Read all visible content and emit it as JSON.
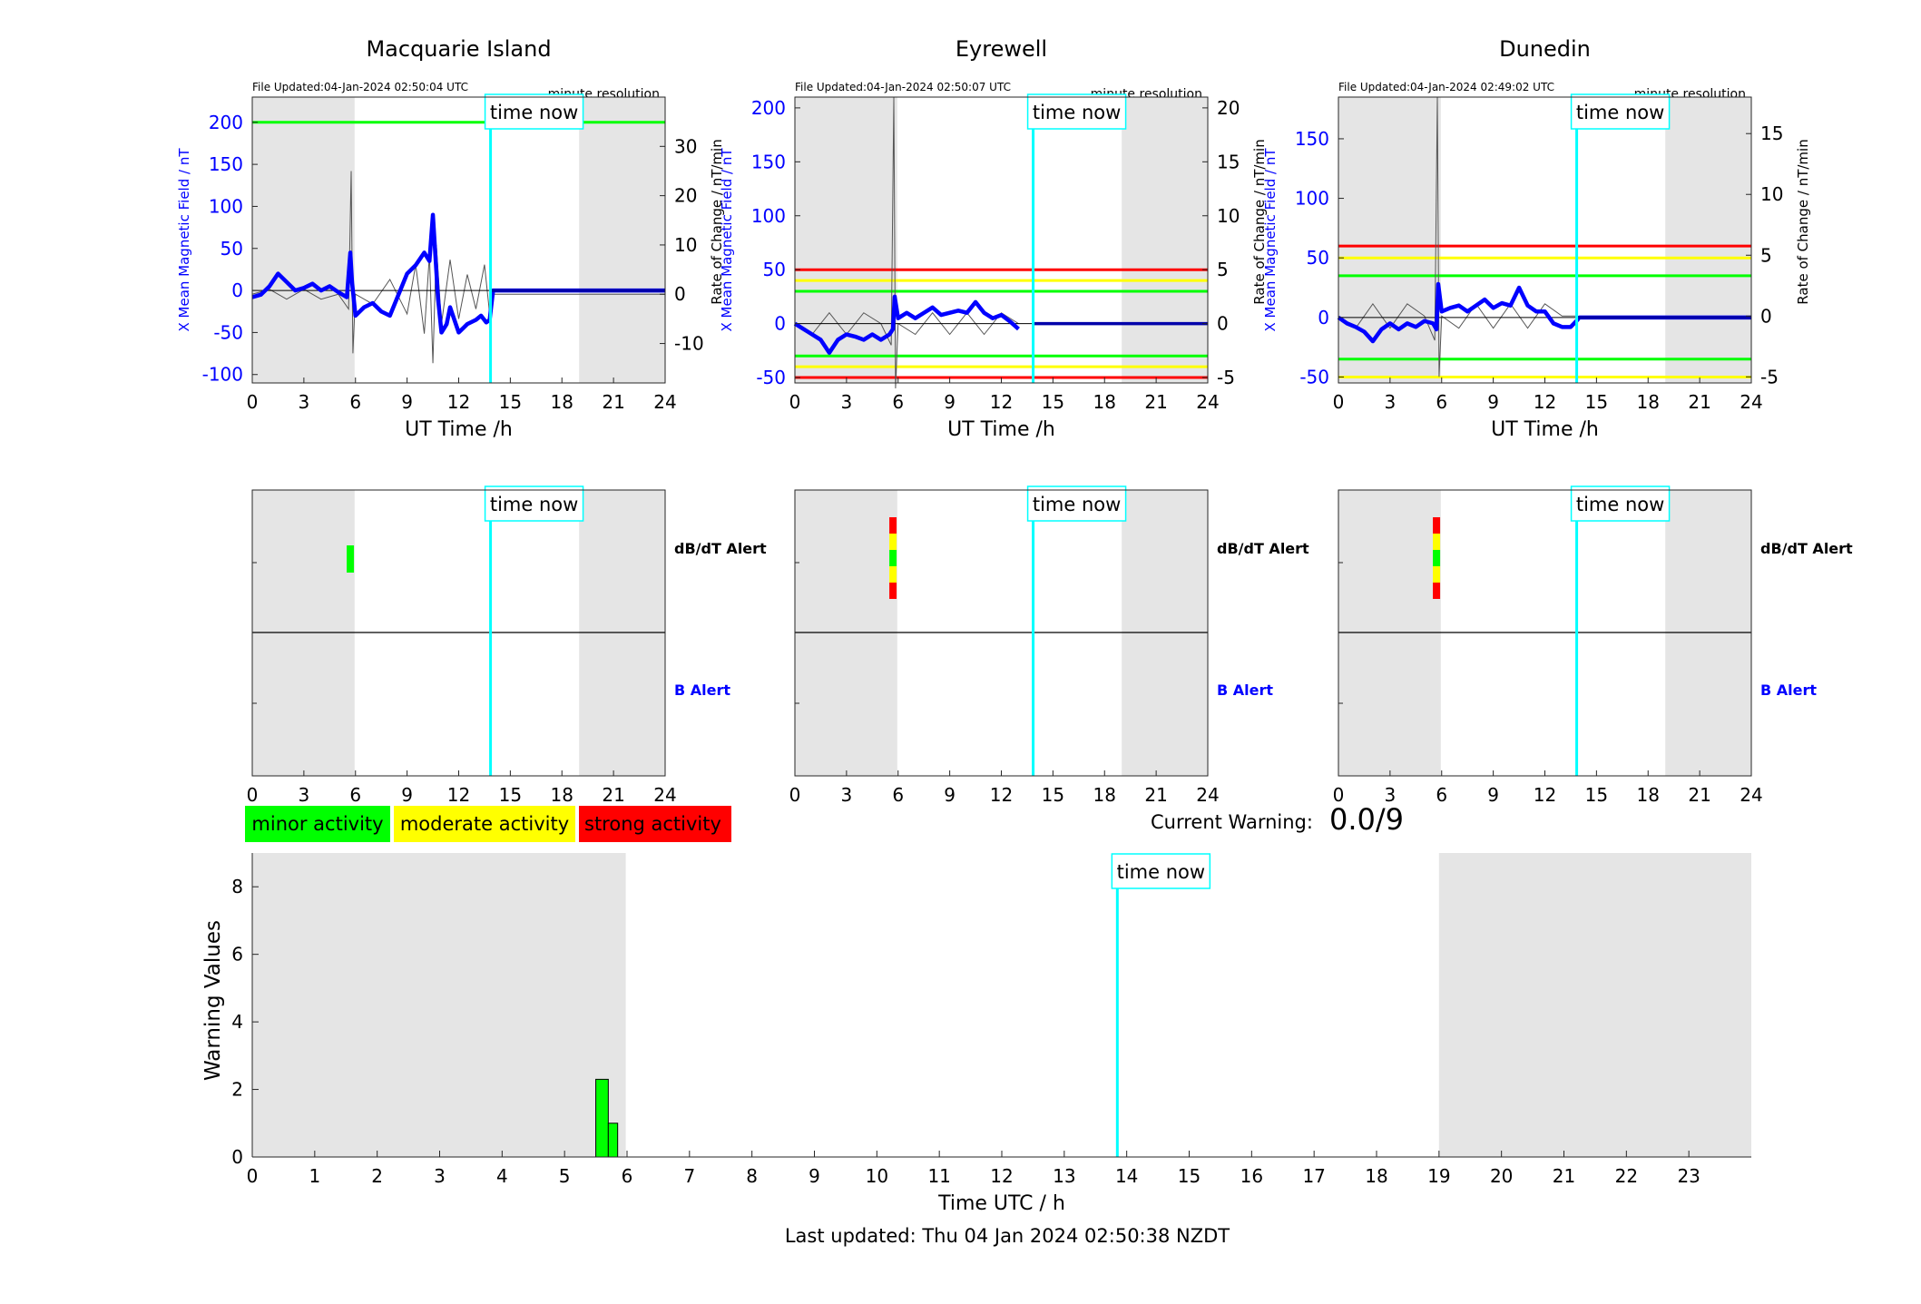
{
  "colors": {
    "blue": "#0000ff",
    "cyan": "#00ffff",
    "green": "#00ff00",
    "yellow": "#ffff00",
    "red": "#ff0000",
    "night": "#e5e5e5"
  },
  "labels": {
    "ut_xlabel": "UT Time /h",
    "left_ylabel": "X Mean Magnetic Field / nT",
    "right_ylabel": "Rate of Change / nT/min",
    "minute_res": "minute resolution",
    "time_now": "time now",
    "dbdt_alert": "dB/dT Alert",
    "b_alert": "B Alert"
  },
  "legend": {
    "minor": "minor activity",
    "moderate": "moderate activity",
    "strong": "strong activity"
  },
  "warning": {
    "label": "Current Warning:",
    "value": "0.0/9"
  },
  "footer": "Last updated: Thu 04 Jan 2024 02:50:38 NZDT",
  "chart_data": [
    {
      "type": "line",
      "title": "Macquarie Island",
      "file_updated": "File Updated:04-Jan-2024 02:50:04 UTC",
      "xlim": [
        0,
        24
      ],
      "xticks": [
        0,
        3,
        6,
        9,
        12,
        15,
        18,
        21,
        24
      ],
      "ylim": [
        -110,
        230
      ],
      "yticks": [
        -100,
        -50,
        0,
        50,
        100,
        150,
        200
      ],
      "y2lim": [
        -18,
        40
      ],
      "y2ticks": [
        -10,
        0,
        10,
        20,
        30
      ],
      "night": [
        [
          0,
          5.95
        ],
        [
          19,
          24
        ]
      ],
      "time_now": 13.85,
      "thresholds": [
        {
          "value": 200,
          "color": "green"
        }
      ],
      "series": [
        {
          "role": "x_mean",
          "x": [
            0,
            0.5,
            1,
            1.5,
            2,
            2.5,
            3,
            3.5,
            4,
            4.5,
            5,
            5.5,
            5.7,
            5.8,
            6,
            6.5,
            7,
            7.5,
            8,
            8.5,
            9,
            9.5,
            10,
            10.3,
            10.5,
            10.8,
            11,
            11.3,
            11.5,
            12,
            12.5,
            13,
            13.3,
            13.6,
            13.8,
            14,
            24
          ],
          "y": [
            -8,
            -5,
            5,
            20,
            10,
            0,
            3,
            8,
            0,
            5,
            -2,
            -8,
            45,
            10,
            -30,
            -20,
            -15,
            -25,
            -30,
            -5,
            20,
            30,
            45,
            35,
            90,
            -10,
            -50,
            -40,
            -20,
            -50,
            -40,
            -35,
            -30,
            -38,
            -35,
            0,
            0
          ]
        },
        {
          "role": "rate",
          "x": [
            0,
            1,
            2,
            3,
            4,
            5,
            5.6,
            5.75,
            5.85,
            6,
            7,
            8,
            9,
            9.5,
            10,
            10.3,
            10.5,
            10.7,
            11,
            11.5,
            12,
            12.5,
            13,
            13.5,
            13.8,
            14,
            24
          ],
          "y": [
            0,
            1,
            -1,
            1,
            -1,
            0,
            -3,
            25,
            -12,
            0,
            -2,
            3,
            -4,
            6,
            -8,
            8,
            -14,
            10,
            -6,
            7,
            -5,
            4,
            -3,
            6,
            -4,
            0,
            0
          ]
        }
      ],
      "alerts": {
        "dbdt": [
          {
            "x": 5.7,
            "levels": [
              "green"
            ]
          }
        ],
        "b": []
      }
    },
    {
      "type": "line",
      "title": "Eyrewell",
      "file_updated": "File Updated:04-Jan-2024 02:50:07 UTC",
      "xlim": [
        0,
        24
      ],
      "xticks": [
        0,
        3,
        6,
        9,
        12,
        15,
        18,
        21,
        24
      ],
      "ylim": [
        -55,
        210
      ],
      "yticks": [
        -50,
        0,
        50,
        100,
        150,
        200
      ],
      "y2lim": [
        -5.5,
        21
      ],
      "y2ticks": [
        -5,
        0,
        5,
        10,
        15,
        20
      ],
      "night": [
        [
          0,
          5.95
        ],
        [
          19,
          24
        ]
      ],
      "time_now": 13.85,
      "thresholds": [
        {
          "value": 50,
          "color": "red"
        },
        {
          "value": 40,
          "color": "yellow"
        },
        {
          "value": 30,
          "color": "green"
        },
        {
          "value": -30,
          "color": "green"
        },
        {
          "value": -40,
          "color": "yellow"
        },
        {
          "value": -50,
          "color": "red"
        }
      ],
      "series": [
        {
          "role": "x_mean",
          "x": [
            0,
            0.5,
            1,
            1.5,
            2,
            2.5,
            3,
            3.5,
            4,
            4.5,
            5,
            5.5,
            5.7,
            5.8,
            6,
            6.5,
            7,
            7.5,
            8,
            8.5,
            9,
            9.5,
            10,
            10.5,
            11,
            11.5,
            12,
            12.5,
            13
          ],
          "y": [
            0,
            -5,
            -10,
            -15,
            -27,
            -15,
            -10,
            -12,
            -15,
            -10,
            -15,
            -10,
            -5,
            25,
            5,
            10,
            5,
            10,
            15,
            8,
            10,
            12,
            10,
            20,
            10,
            5,
            8,
            2,
            -5
          ]
        },
        {
          "role": "rate",
          "x": [
            0,
            1,
            2,
            3,
            4,
            5,
            5.6,
            5.75,
            5.85,
            6,
            7,
            8,
            9,
            10,
            11,
            12,
            13
          ],
          "y": [
            0,
            -1,
            1,
            -1,
            1,
            0,
            -2,
            21,
            -6,
            0,
            -1,
            1,
            -1,
            1,
            -1,
            1,
            0
          ]
        }
      ],
      "alerts": {
        "dbdt": [
          {
            "x": 5.7,
            "levels": [
              "red",
              "yellow",
              "green",
              "yellow",
              "red"
            ]
          }
        ],
        "b": []
      }
    },
    {
      "type": "line",
      "title": "Dunedin",
      "file_updated": "File Updated:04-Jan-2024 02:49:02 UTC",
      "xlim": [
        0,
        24
      ],
      "xticks": [
        0,
        3,
        6,
        9,
        12,
        15,
        18,
        21,
        24
      ],
      "ylim": [
        -55,
        185
      ],
      "yticks": [
        -50,
        0,
        50,
        100,
        150
      ],
      "y2lim": [
        -5.5,
        18
      ],
      "y2ticks": [
        -5,
        0,
        5,
        10,
        15
      ],
      "night": [
        [
          0,
          5.95
        ],
        [
          19,
          24
        ]
      ],
      "time_now": 13.85,
      "thresholds": [
        {
          "value": 60,
          "color": "red"
        },
        {
          "value": 50,
          "color": "yellow"
        },
        {
          "value": 35,
          "color": "green"
        },
        {
          "value": -35,
          "color": "green"
        },
        {
          "value": -50,
          "color": "yellow"
        }
      ],
      "series": [
        {
          "role": "x_mean",
          "x": [
            0,
            0.5,
            1,
            1.5,
            2,
            2.5,
            3,
            3.5,
            4,
            4.5,
            5,
            5.5,
            5.7,
            5.8,
            6,
            6.5,
            7,
            7.5,
            8,
            8.5,
            9,
            9.5,
            10,
            10.5,
            11,
            11.5,
            12,
            12.5,
            13,
            13.5,
            13.9,
            14,
            24
          ],
          "y": [
            0,
            -5,
            -8,
            -12,
            -20,
            -10,
            -5,
            -10,
            -5,
            -8,
            -3,
            -5,
            -10,
            28,
            5,
            8,
            10,
            5,
            10,
            15,
            8,
            12,
            10,
            25,
            10,
            5,
            5,
            -5,
            -8,
            -8,
            -2,
            0,
            0
          ]
        },
        {
          "role": "rate",
          "x": [
            0,
            1,
            2,
            3,
            4,
            5,
            5.6,
            5.75,
            5.85,
            6,
            7,
            8,
            9,
            10,
            11,
            12,
            13,
            13.8
          ],
          "y": [
            0,
            -1,
            1,
            -1,
            1,
            0,
            -2,
            18,
            -5,
            0,
            -1,
            1,
            -1,
            1,
            -1,
            1,
            0,
            0
          ]
        }
      ],
      "alerts": {
        "dbdt": [
          {
            "x": 5.7,
            "levels": [
              "red",
              "yellow",
              "green",
              "yellow",
              "red"
            ]
          }
        ],
        "b": []
      }
    },
    {
      "type": "bar",
      "title": "",
      "xlabel": "Time UTC / h",
      "ylabel": "Warning Values",
      "xlim": [
        0,
        24
      ],
      "xticks": [
        0,
        1,
        2,
        3,
        4,
        5,
        6,
        7,
        8,
        9,
        10,
        11,
        12,
        13,
        14,
        15,
        16,
        17,
        18,
        19,
        20,
        21,
        22,
        23
      ],
      "ylim": [
        0,
        9
      ],
      "yticks": [
        0,
        2,
        4,
        6,
        8
      ],
      "night": [
        [
          0,
          5.98
        ],
        [
          19,
          24
        ]
      ],
      "time_now": 13.85,
      "bars": [
        {
          "x0": 5.5,
          "x1": 5.7,
          "value": 2.3
        },
        {
          "x0": 5.7,
          "x1": 5.85,
          "value": 1.0
        }
      ]
    }
  ]
}
